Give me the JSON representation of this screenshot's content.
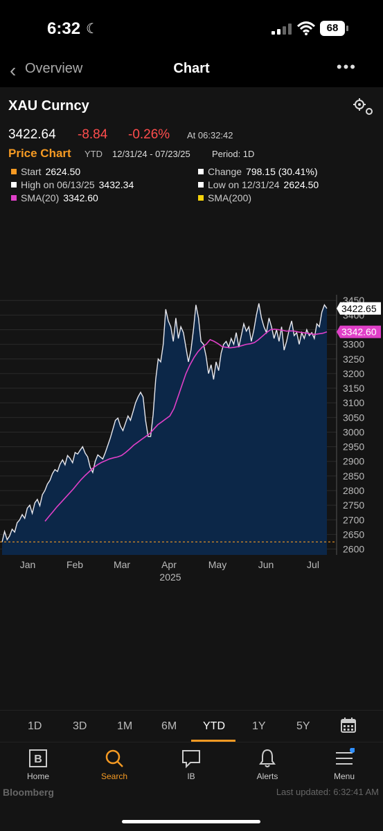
{
  "status": {
    "time": "6:32",
    "battery": "68"
  },
  "nav": {
    "back_label": "Overview",
    "title": "Chart"
  },
  "security": {
    "ticker": "XAU Curncy",
    "price": "3422.64",
    "change": "-8.84",
    "change_pct": "-0.26%",
    "as_of": "At 06:32:42",
    "chart_title": "Price Chart",
    "range_label": "YTD",
    "date_range": "12/31/24 - 07/23/25",
    "period": "Period: 1D"
  },
  "stats": {
    "start_label": "Start",
    "start_value": "2624.50",
    "change_label": "Change",
    "change_value": "798.15 (30.41%)",
    "high_label": "High on 06/13/25",
    "high_value": "3432.34",
    "low_label": "Low on 12/31/24",
    "low_value": "2624.50",
    "sma20_label": "SMA(20)",
    "sma20_value": "3342.60",
    "sma200_label": "SMA(200)"
  },
  "colors": {
    "accent": "#f59a23",
    "negative": "#ff4d4d",
    "sma20": "#e040c8",
    "sma200": "#f5d20a",
    "area": "#0c2748"
  },
  "chart_data": {
    "type": "area",
    "x_labels": [
      "Jan",
      "Feb",
      "Mar",
      "Apr",
      "May",
      "Jun",
      "Jul"
    ],
    "year_label": "2025",
    "y_ticks": [
      2600,
      2650,
      2700,
      2750,
      2800,
      2850,
      2900,
      2950,
      3000,
      3050,
      3100,
      3150,
      3200,
      3250,
      3300,
      3350,
      3400,
      3450
    ],
    "ylim": [
      2580,
      3460
    ],
    "price_tag": "3422.65",
    "sma_tag": "3342.60",
    "reference_line": 2624.5,
    "series": [
      {
        "role": "price",
        "values": [
          2624,
          2660,
          2632,
          2645,
          2668,
          2658,
          2690,
          2700,
          2718,
          2705,
          2740,
          2750,
          2722,
          2758,
          2770,
          2748,
          2786,
          2800,
          2822,
          2835,
          2858,
          2872,
          2865,
          2890,
          2905,
          2888,
          2920,
          2910,
          2895,
          2930,
          2925,
          2938,
          2950,
          2928,
          2915,
          2880,
          2862,
          2900,
          2922,
          2915,
          2908,
          2930,
          2955,
          2980,
          3010,
          3040,
          3048,
          3020,
          3005,
          3030,
          3055,
          3040,
          3070,
          3100,
          3120,
          3136,
          3120,
          3040,
          2985,
          2985,
          3060,
          3180,
          3250,
          3240,
          3300,
          3420,
          3380,
          3360,
          3310,
          3390,
          3320,
          3360,
          3340,
          3290,
          3240,
          3280,
          3350,
          3435,
          3390,
          3310,
          3300,
          3260,
          3200,
          3230,
          3180,
          3240,
          3210,
          3270,
          3300,
          3310,
          3290,
          3320,
          3300,
          3340,
          3290,
          3330,
          3370,
          3345,
          3360,
          3310,
          3350,
          3400,
          3440,
          3390,
          3360,
          3340,
          3390,
          3360,
          3320,
          3350,
          3310,
          3360,
          3280,
          3310,
          3350,
          3380,
          3330,
          3340,
          3300,
          3340,
          3320,
          3350,
          3330,
          3340,
          3320,
          3370,
          3360,
          3410,
          3435,
          3422.65
        ]
      },
      {
        "role": "sma",
        "name": "SMA(20)",
        "values": [
          2695,
          2712,
          2728,
          2745,
          2760,
          2775,
          2790,
          2805,
          2822,
          2838,
          2852,
          2865,
          2878,
          2888,
          2896,
          2902,
          2908,
          2912,
          2915,
          2920,
          2930,
          2942,
          2955,
          2965,
          2975,
          2985,
          2995,
          3010,
          3025,
          3035,
          3045,
          3055,
          3080,
          3120,
          3160,
          3200,
          3230,
          3255,
          3275,
          3290,
          3300,
          3316,
          3310,
          3302,
          3292,
          3290,
          3288,
          3290,
          3292,
          3296,
          3300,
          3302,
          3306,
          3316,
          3328,
          3340,
          3350,
          3352,
          3350,
          3348,
          3345,
          3346,
          3345,
          3342,
          3340,
          3338,
          3336,
          3334,
          3336,
          3338,
          3342.6
        ]
      }
    ]
  },
  "periods": {
    "items": [
      "1D",
      "3D",
      "1M",
      "6M",
      "YTD",
      "1Y",
      "5Y"
    ],
    "active": "YTD"
  },
  "tabs": {
    "home": "Home",
    "search": "Search",
    "ib": "IB",
    "alerts": "Alerts",
    "menu": "Menu"
  },
  "footer": {
    "brand": "Bloomberg",
    "updated": "Last updated: 6:32:41 AM"
  }
}
